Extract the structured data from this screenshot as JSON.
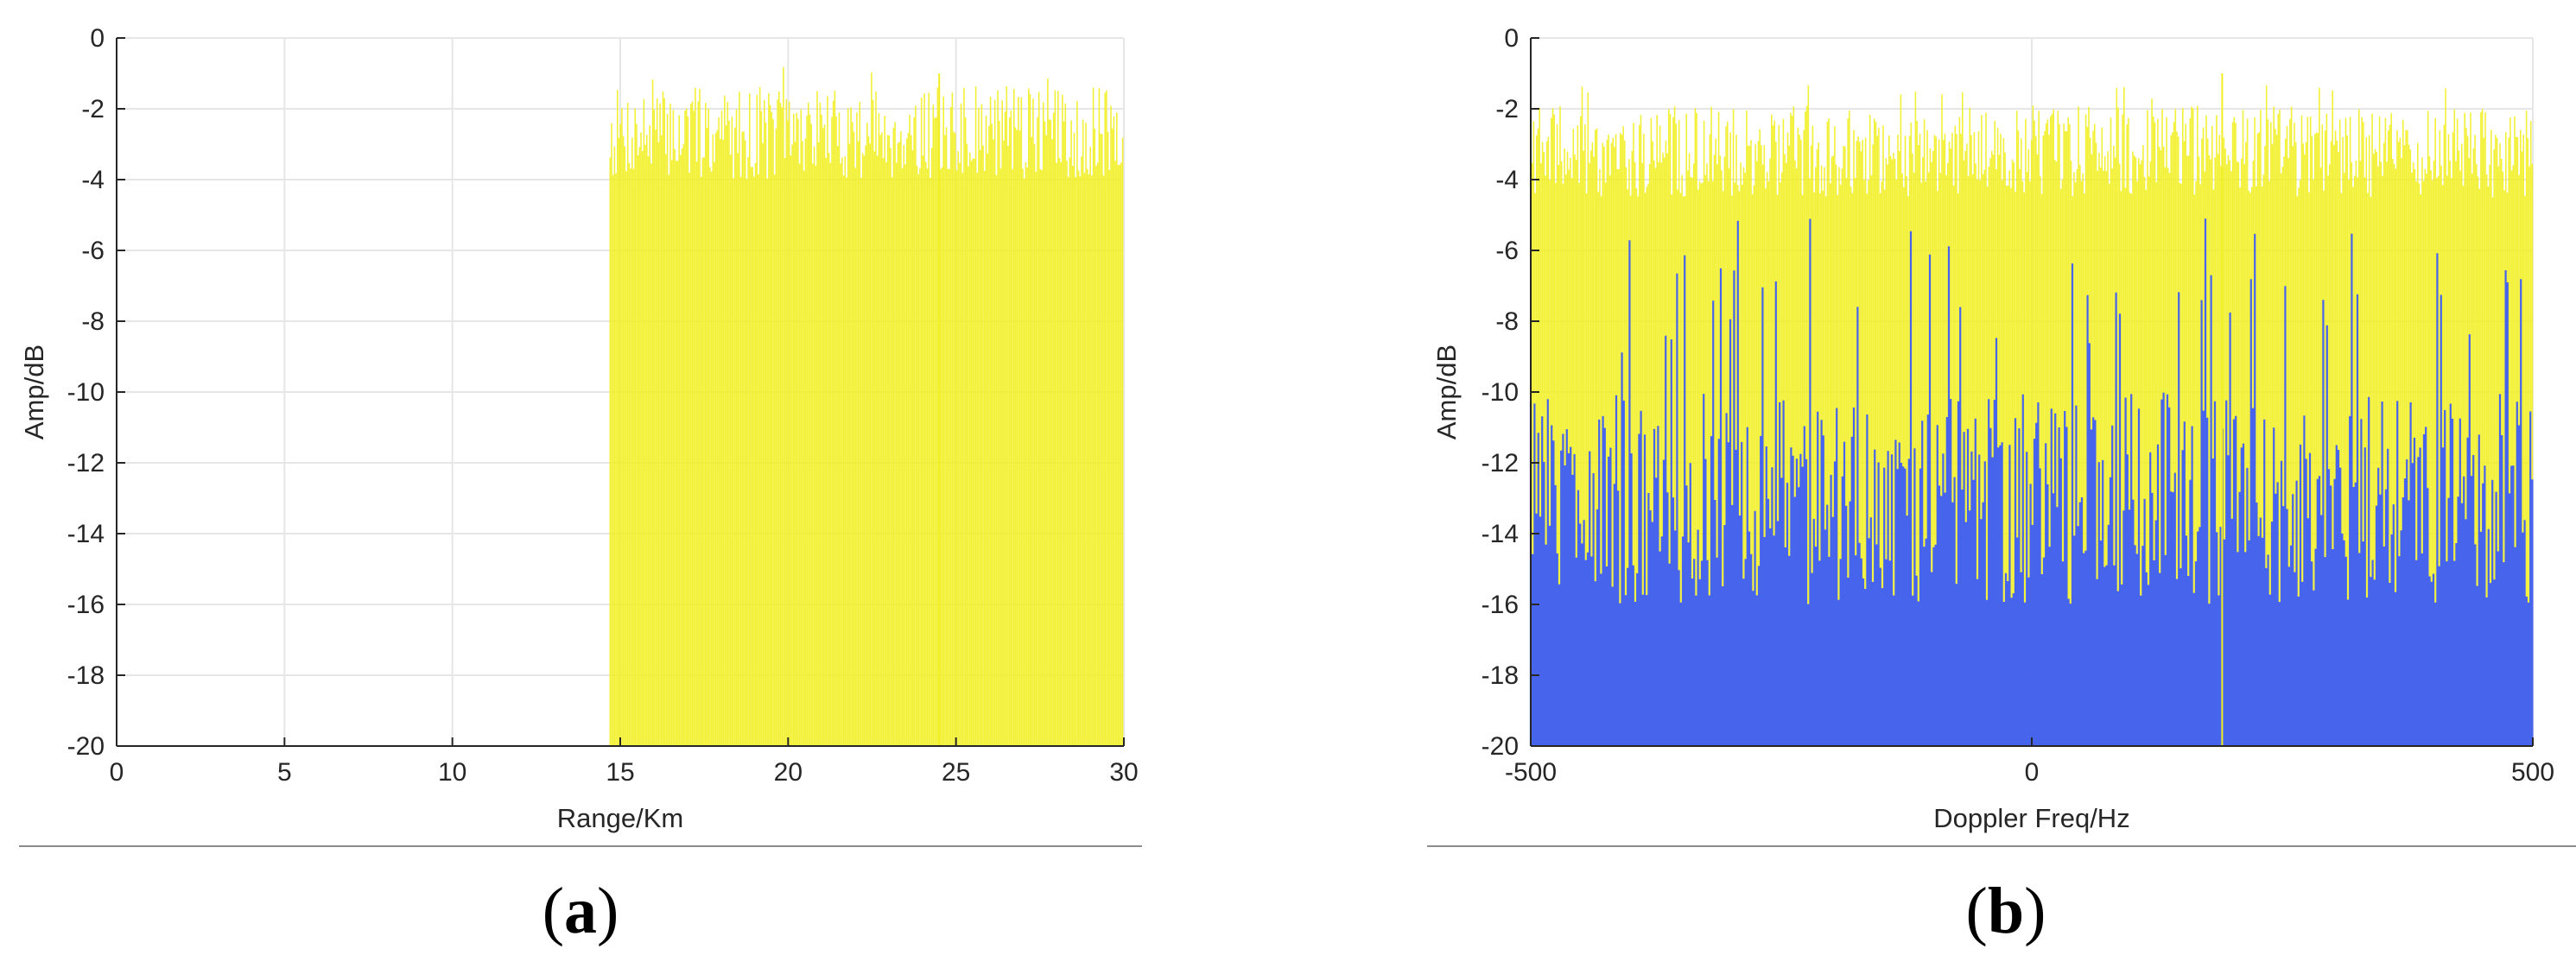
{
  "chart_data": [
    {
      "panel": "a",
      "caption_letter": "a",
      "type": "line",
      "style": "dense_noise_stems",
      "xlabel": "Range/Km",
      "ylabel": "Amp/dB",
      "xlim": [
        0,
        30
      ],
      "ylim": [
        -20,
        0
      ],
      "x_ticks": [
        0,
        5,
        10,
        15,
        20,
        25,
        30
      ],
      "y_ticks": [
        0,
        -2,
        -4,
        -6,
        -8,
        -10,
        -12,
        -14,
        -16,
        -18,
        -20
      ],
      "grid": true,
      "colors": {
        "signal": "#f2ee22",
        "grid": "#e6e6e6",
        "axis": "#262626",
        "background_trace": "#4a6cf0"
      },
      "series": [
        {
          "color": "#f2ee22",
          "x_start": 14.7,
          "x_end": 30,
          "envelope_peak_db": -2.5,
          "floor_db": -20,
          "max_peak_x": 24.5,
          "max_peak_db": -1.0
        }
      ]
    },
    {
      "panel": "b",
      "caption_letter": "b",
      "type": "line",
      "style": "dense_noise_stems",
      "xlabel": "Doppler Freq/Hz",
      "ylabel": "Amp/dB",
      "xlim": [
        -500,
        500
      ],
      "ylim": [
        -20,
        0
      ],
      "x_ticks": [
        -500,
        0,
        500
      ],
      "y_ticks": [
        0,
        -2,
        -4,
        -6,
        -8,
        -10,
        -12,
        -14,
        -16,
        -18,
        -20
      ],
      "grid": true,
      "colors": {
        "signal": "#f2ee22",
        "underlay": "#3d5cf5",
        "grid": "#e6e6e6",
        "axis": "#262626"
      },
      "series": [
        {
          "color": "#f2ee22",
          "x_start": -500,
          "x_end": 500,
          "envelope_peak_db": -3.0,
          "floor_db": -20,
          "max_peak_x": 190,
          "max_peak_db": -1.0
        },
        {
          "color": "#3d5cf5",
          "x_start": -500,
          "x_end": 500,
          "envelope_peak_db": -12.0,
          "floor_db": -20
        }
      ]
    }
  ]
}
